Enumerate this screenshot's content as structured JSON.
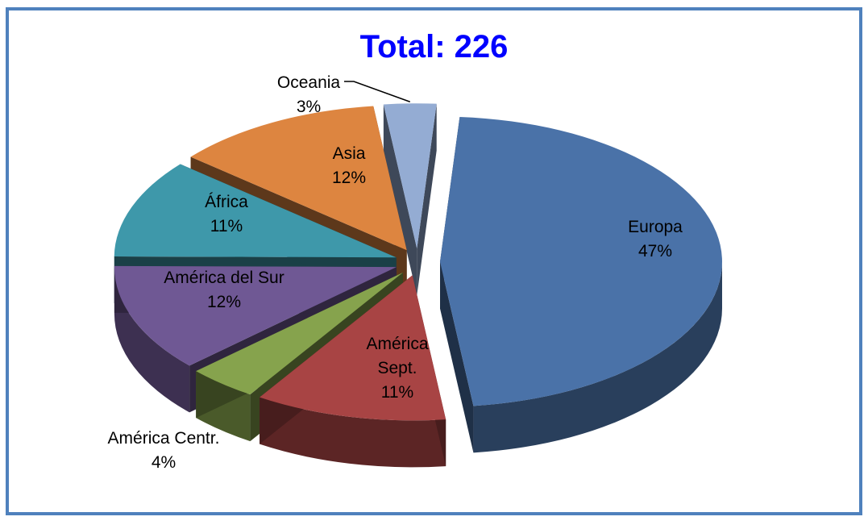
{
  "chart_data": {
    "type": "pie",
    "title": "Total: 226",
    "series": [
      {
        "label": "Europa",
        "percent_text": "47%",
        "value": 47,
        "color": "#4a72a8"
      },
      {
        "label": "América Sept.",
        "percent_text": "11%",
        "value": 11,
        "color": "#a84444"
      },
      {
        "label": "América Centr.",
        "percent_text": "4%",
        "value": 4,
        "color": "#86a34d"
      },
      {
        "label": "América del Sur",
        "percent_text": "12%",
        "value": 12,
        "color": "#6f5894"
      },
      {
        "label": "África",
        "percent_text": "11%",
        "value": 11,
        "color": "#3e98aa"
      },
      {
        "label": "Asia",
        "percent_text": "12%",
        "value": 12,
        "color": "#dd8540"
      },
      {
        "label": "Oceania",
        "percent_text": "3%",
        "value": 3,
        "color": "#94acd3"
      }
    ],
    "legend": "none",
    "exploded": true,
    "style": "3d"
  }
}
